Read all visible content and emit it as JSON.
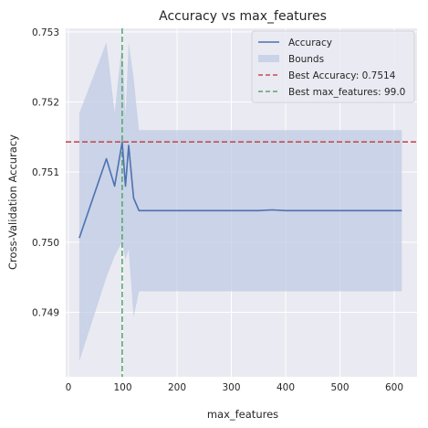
{
  "chart_data": {
    "type": "line",
    "title": "Accuracy vs max_features",
    "xlabel": "max_features",
    "ylabel": "Cross-Validation Accuracy",
    "xlim": [
      -5,
      642
    ],
    "ylim": [
      0.74808,
      0.75305
    ],
    "xticks": [
      0,
      100,
      200,
      300,
      400,
      500,
      600
    ],
    "yticks": [
      0.749,
      0.75,
      0.751,
      0.752,
      0.753
    ],
    "ytick_labels": [
      "0.749",
      "0.750",
      "0.751",
      "0.752",
      "0.753"
    ],
    "grid": true,
    "legend_position": "top-right",
    "colors": {
      "background": "#eaeaf2",
      "grid": "#ffffff",
      "accuracy": "#4c72b0",
      "bounds": "#b8c6e0",
      "best_accuracy": "#c44e52",
      "best_max_features": "#55a868"
    },
    "series": [
      {
        "name": "Accuracy",
        "x": [
          20,
          70,
          85,
          99,
          105,
          111,
          120,
          130,
          150,
          200,
          250,
          300,
          350,
          375,
          400,
          425,
          450,
          475,
          500,
          550,
          600,
          614
        ],
        "y": [
          0.75006,
          0.75119,
          0.7508,
          0.75143,
          0.7508,
          0.75138,
          0.75063,
          0.75045,
          0.75045,
          0.75045,
          0.75045,
          0.75045,
          0.75045,
          0.75046,
          0.75045,
          0.75045,
          0.75045,
          0.75045,
          0.75045,
          0.75045,
          0.75045,
          0.75045
        ]
      },
      {
        "name": "Bounds",
        "x": [
          20,
          70,
          85,
          99,
          105,
          111,
          120,
          130,
          150,
          200,
          300,
          400,
          500,
          614
        ],
        "upper": [
          0.75184,
          0.75285,
          0.75185,
          0.75285,
          0.7518,
          0.75285,
          0.75234,
          0.7516,
          0.7516,
          0.7516,
          0.7516,
          0.7516,
          0.7516,
          0.7516
        ],
        "lower": [
          0.7483,
          0.7495,
          0.7498,
          0.75,
          0.74975,
          0.7499,
          0.74893,
          0.7493,
          0.7493,
          0.7493,
          0.7493,
          0.7493,
          0.7493,
          0.7493
        ]
      }
    ],
    "reference_lines": [
      {
        "name": "Best Accuracy: 0.7514",
        "orientation": "horizontal",
        "value": 0.75143
      },
      {
        "name": "Best max_features: 99.0",
        "orientation": "vertical",
        "value": 99.0
      }
    ]
  }
}
